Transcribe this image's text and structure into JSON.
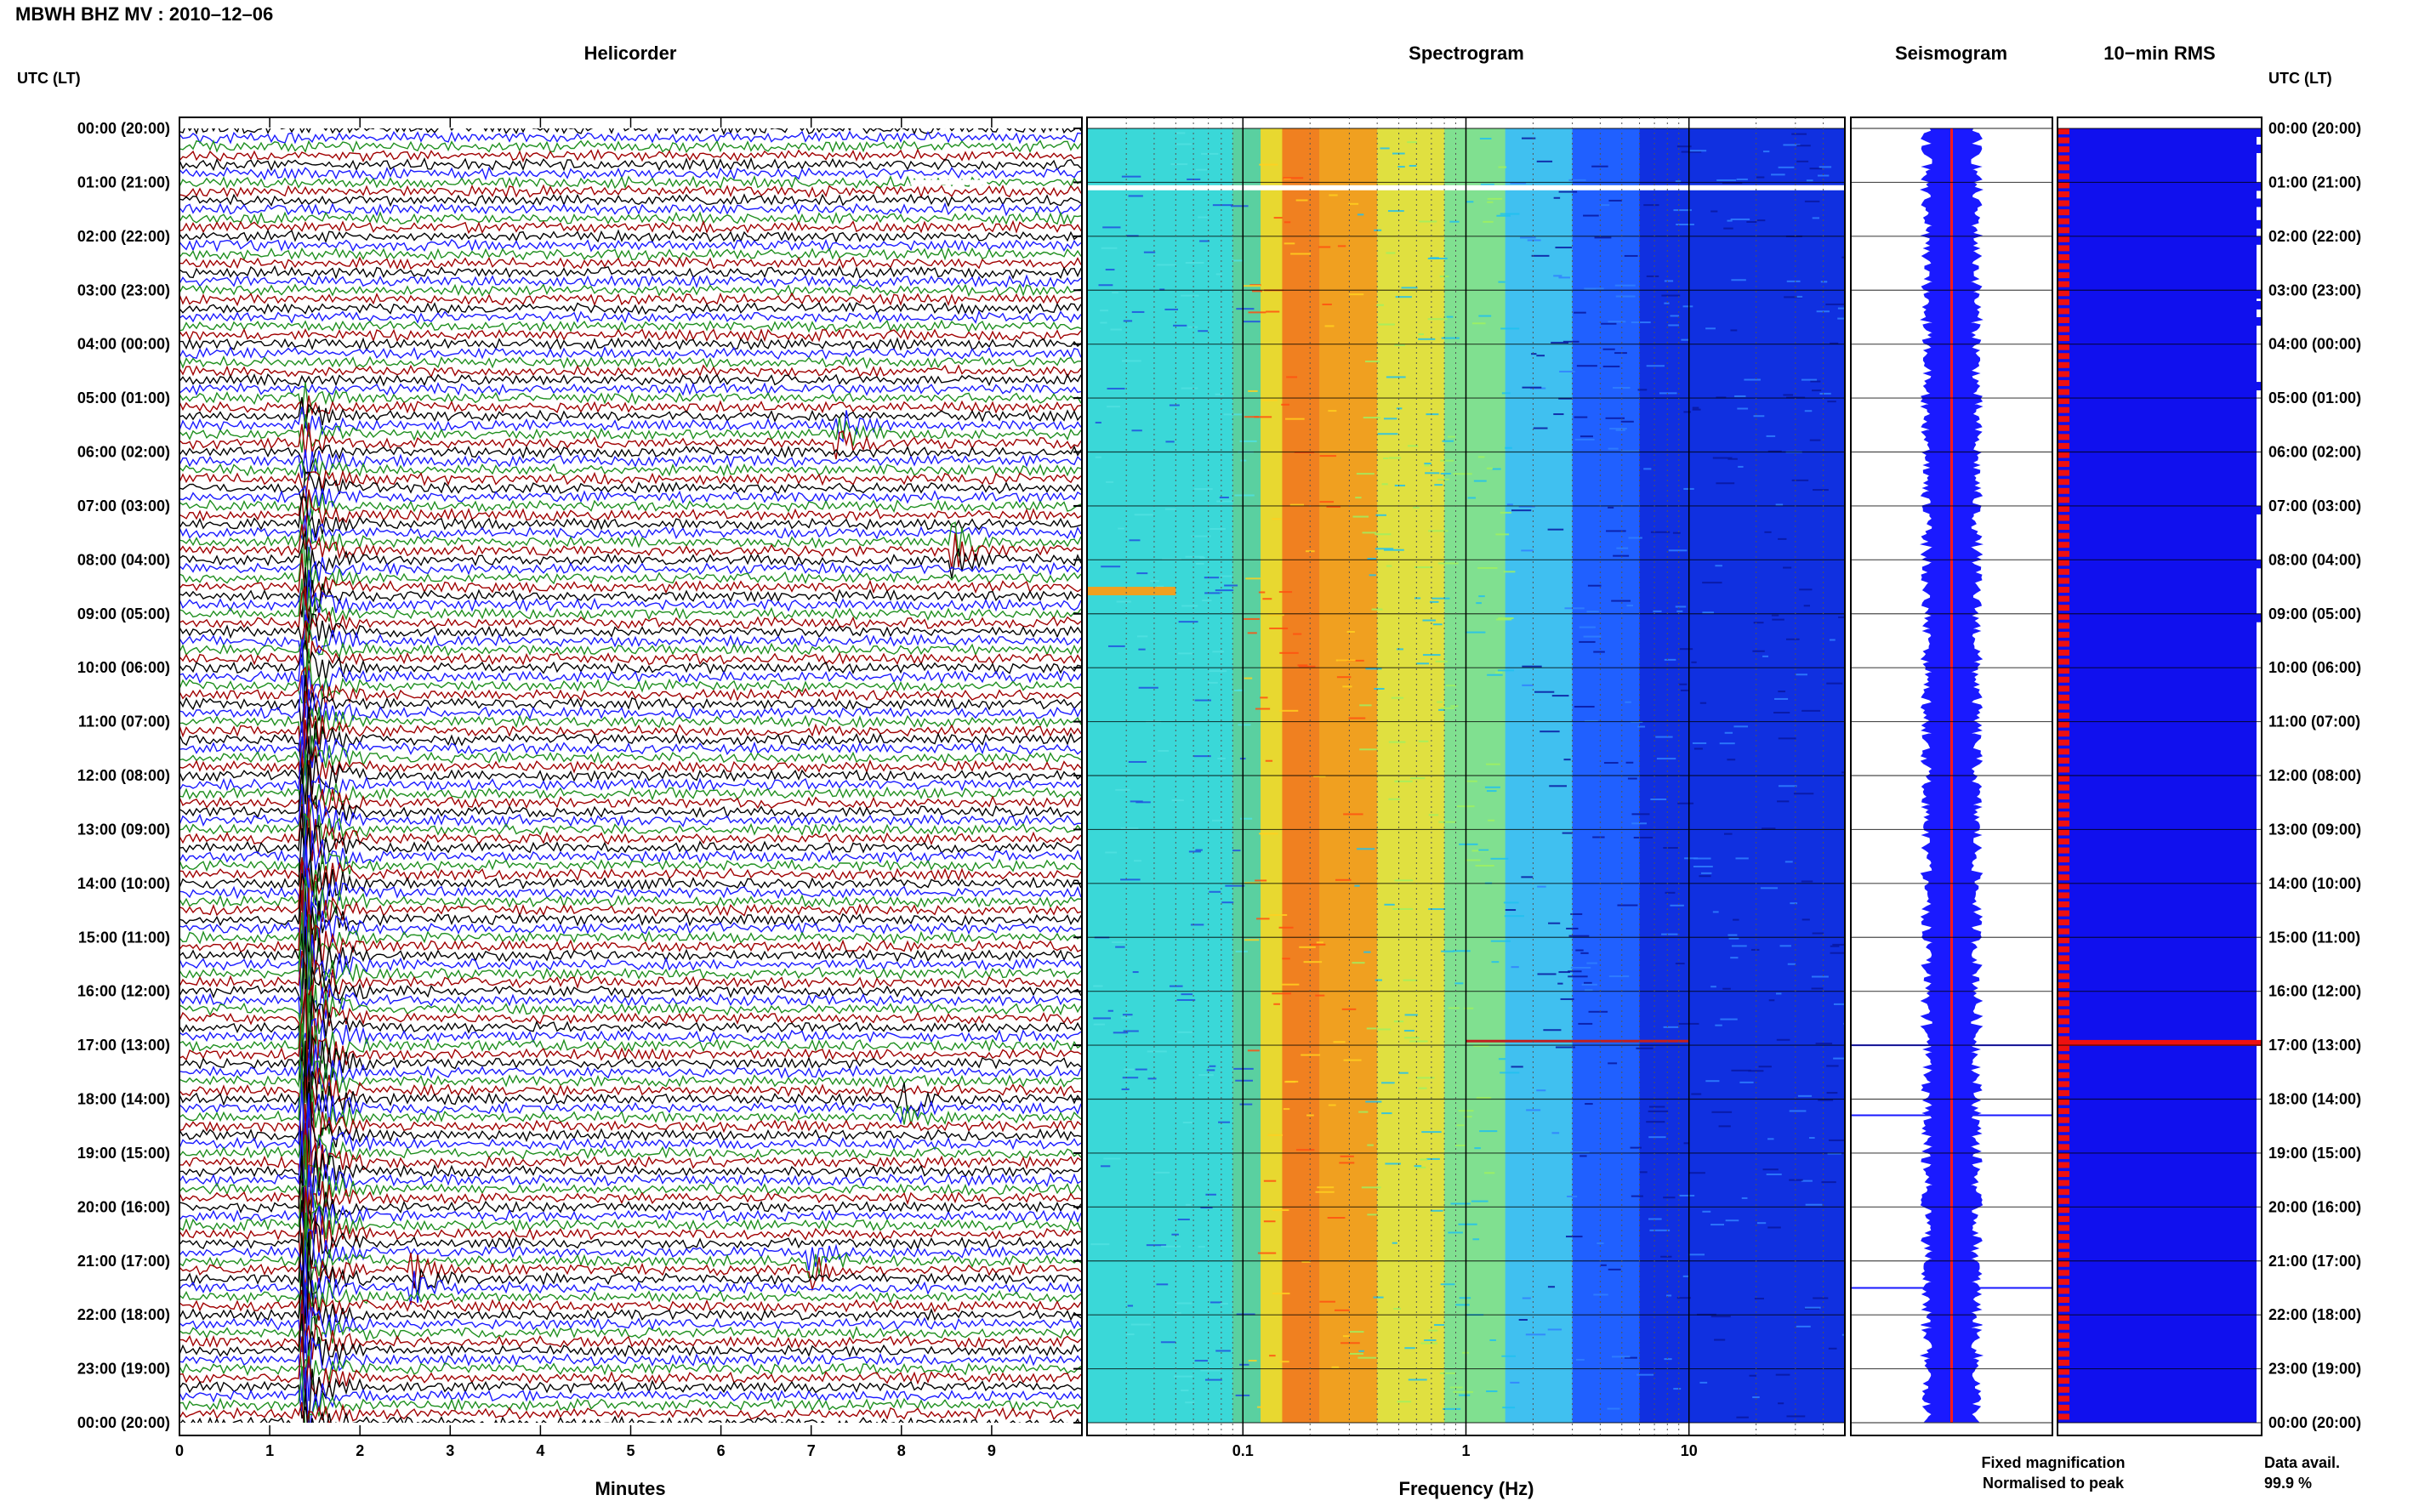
{
  "title": "MBWH BHZ MV : 2010–12–06",
  "panels": {
    "helicorder": "Helicorder",
    "spectrogram": "Spectrogram",
    "seismogram": "Seismogram",
    "rms": "10−min RMS"
  },
  "time_axis_label": "UTC (LT)",
  "legend": {
    "fixed": "Fixed magnification",
    "normalised": "Normalised to peak",
    "fixed_color": "#1a1aff",
    "normalised_color": "#ff1a1a"
  },
  "data_avail": {
    "label": "Data avail.",
    "value": "99.9 %"
  },
  "chart_data": [
    {
      "type": "line",
      "name": "helicorder",
      "title": "Helicorder",
      "xlabel": "Minutes",
      "xlim": [
        0,
        10
      ],
      "x_ticks": [
        "0",
        "1",
        "2",
        "3",
        "4",
        "5",
        "6",
        "7",
        "8",
        "9"
      ],
      "row_labels": [
        "00:00 (20:00)",
        "01:00 (21:00)",
        "02:00 (22:00)",
        "03:00 (23:00)",
        "04:00 (00:00)",
        "05:00 (01:00)",
        "06:00 (02:00)",
        "07:00 (03:00)",
        "08:00 (04:00)",
        "09:00 (05:00)",
        "10:00 (06:00)",
        "11:00 (07:00)",
        "12:00 (08:00)",
        "13:00 (09:00)",
        "14:00 (10:00)",
        "15:00 (11:00)",
        "16:00 (12:00)",
        "17:00 (13:00)",
        "18:00 (14:00)",
        "19:00 (15:00)",
        "20:00 (16:00)",
        "21:00 (17:00)",
        "22:00 (18:00)",
        "23:00 (19:00)",
        "00:00 (20:00)"
      ],
      "trace_colors": [
        "#000000",
        "#1a1aff",
        "#1f8f1f",
        "#a00000"
      ],
      "traces_per_hour": 6,
      "events": [
        {
          "name": "large event",
          "start_hour": 5.0,
          "end_hour": 24.0,
          "minute": 1.4,
          "color": "#1f8f1f"
        },
        {
          "name": "event",
          "hour": 21.3,
          "minute": 2.6,
          "color": "#a00000"
        },
        {
          "name": "event",
          "hour": 5.7,
          "minute": 7.3,
          "color": "#1a1aff"
        },
        {
          "name": "event",
          "hour": 7.8,
          "minute": 8.6,
          "color": "#1f8f1f"
        },
        {
          "name": "event",
          "hour": 18.1,
          "minute": 8.0,
          "color": "#a00000"
        },
        {
          "name": "event",
          "hour": 21.0,
          "minute": 7.0,
          "color": "#1a1aff"
        }
      ]
    },
    {
      "type": "heatmap",
      "name": "spectrogram",
      "title": "Spectrogram",
      "xlabel": "Frequency (Hz)",
      "x_scale": "log",
      "xlim": [
        0.02,
        50
      ],
      "x_ticks": [
        "0.1",
        "1",
        "10"
      ],
      "x_tick_values": [
        0.1,
        1,
        10
      ],
      "spectral_peak_hz": 0.17,
      "gap_hour": 1.1,
      "bands": [
        {
          "f": 0.02,
          "color": "#3ad8d8"
        },
        {
          "f": 0.09,
          "color": "#5ad0a0"
        },
        {
          "f": 0.12,
          "color": "#e8d830"
        },
        {
          "f": 0.15,
          "color": "#f08020"
        },
        {
          "f": 0.22,
          "color": "#f0a020"
        },
        {
          "f": 0.4,
          "color": "#e0e040"
        },
        {
          "f": 0.8,
          "color": "#80e090"
        },
        {
          "f": 1.5,
          "color": "#40c0f0"
        },
        {
          "f": 3.0,
          "color": "#2060ff"
        },
        {
          "f": 6.0,
          "color": "#1030e0"
        },
        {
          "f": 50,
          "color": "#0a20c0"
        }
      ]
    },
    {
      "type": "area",
      "name": "seismogram",
      "title": "Seismogram",
      "series": [
        {
          "name": "Fixed magnification",
          "color": "#1a1aff"
        },
        {
          "name": "Normalised to peak",
          "color": "#ff1a1a"
        }
      ],
      "spikes_hour": [
        17.0,
        18.3,
        21.5
      ]
    },
    {
      "type": "bar",
      "name": "rms",
      "title": "10−min RMS",
      "bar_colors": {
        "fixed": "#1010ee",
        "normalised": "#ee1010"
      },
      "peak_hour": 16.95,
      "high_rms_hours": [
        0.0,
        0.3,
        1.0,
        1.3,
        1.7,
        2.0,
        3.0,
        3.2,
        3.5,
        4.7,
        7.0,
        8.0,
        9.0
      ]
    }
  ]
}
